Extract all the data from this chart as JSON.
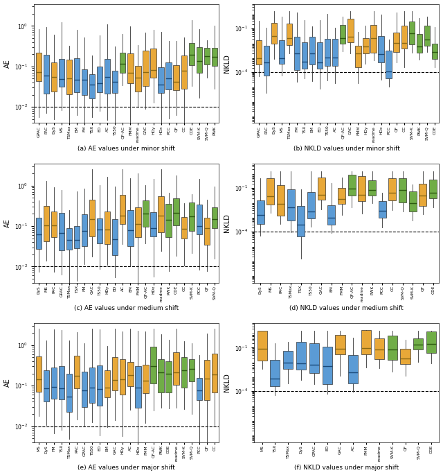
{
  "panel_configs": [
    {
      "labels": [
        "GPAC",
        "PAC",
        "DyS",
        "MS",
        "TSMax",
        "EM",
        "FM",
        "TSX",
        "ED",
        "AC",
        "TS50",
        "QF-AC",
        "FMM",
        "readme",
        "GAC",
        "HDy",
        "HDx",
        "PCC",
        "QF",
        "CC",
        "CDE",
        "SVM-K",
        "SVM-Q",
        "PWK"
      ],
      "colors": [
        "O",
        "B",
        "O",
        "B",
        "O",
        "B",
        "B",
        "B",
        "B",
        "B",
        "B",
        "G",
        "O",
        "O",
        "O",
        "O",
        "B",
        "B",
        "O",
        "O",
        "G",
        "G",
        "G",
        "G"
      ],
      "shift": "minor",
      "metric": "AE",
      "title": "(a) AE values under minor shift",
      "ylabel": "AE",
      "dline": 0.01
    },
    {
      "labels": [
        "GPAC",
        "PAC",
        "DyS",
        "MS",
        "TSMax",
        "FM",
        "TSX",
        "EM",
        "ED",
        "TS50",
        "AC",
        "QF-AC",
        "GAC",
        "FMM",
        "HDy",
        "readme",
        "HDx",
        "PCC",
        "QF",
        "CC",
        "SVM-K",
        "PWK",
        "SVM-Q",
        "CDE"
      ],
      "colors": [
        "O",
        "B",
        "O",
        "B",
        "O",
        "B",
        "B",
        "B",
        "B",
        "B",
        "B",
        "G",
        "O",
        "O",
        "O",
        "O",
        "B",
        "B",
        "O",
        "O",
        "G",
        "G",
        "G",
        "G"
      ],
      "shift": "minor",
      "metric": "NKLD",
      "title": "(b) NKLD values under minor shift",
      "ylabel": "NKLD",
      "dline": 0.0001
    },
    {
      "labels": [
        "DyS",
        "MS",
        "PAC",
        "GPAC",
        "TSMax",
        "TSX",
        "FM",
        "GAC",
        "TS50",
        "HDy",
        "ED",
        "AC",
        "EM",
        "FMM",
        "QF-AC",
        "HDx",
        "readme",
        "PWK",
        "CDE",
        "CC",
        "SVM-K",
        "PCC",
        "QF",
        "SVM-Q"
      ],
      "colors": [
        "B",
        "O",
        "O",
        "B",
        "B",
        "B",
        "B",
        "O",
        "B",
        "O",
        "B",
        "O",
        "B",
        "O",
        "G",
        "B",
        "O",
        "G",
        "G",
        "O",
        "G",
        "B",
        "O",
        "G"
      ],
      "shift": "medium",
      "metric": "AE",
      "title": "(c) AE values under medium shift",
      "ylabel": "AE",
      "dline": 0.01
    },
    {
      "labels": [
        "DyS",
        "MS",
        "PAC",
        "TSMax",
        "TSX",
        "TS50",
        "GAC",
        "EM",
        "FMM",
        "QF-AC",
        "readme",
        "PWK",
        "PCC",
        "CC",
        "SVM-Q",
        "SVM-K",
        "QF",
        "CDE"
      ],
      "colors": [
        "B",
        "O",
        "O",
        "B",
        "B",
        "B",
        "O",
        "B",
        "O",
        "G",
        "O",
        "G",
        "B",
        "O",
        "G",
        "G",
        "O",
        "G"
      ],
      "shift": "medium",
      "metric": "NKLD",
      "title": "(d) NKLD values under medium shift",
      "ylabel": "NKLD",
      "dline": 0.0001
    },
    {
      "labels": [
        "MS",
        "DyS",
        "FM",
        "TSX",
        "TSMax",
        "PAC",
        "GPAC",
        "TS50",
        "ED",
        "EM",
        "GAC",
        "HDy",
        "AC",
        "HDx",
        "FMM",
        "QF-AC",
        "PWK",
        "CDE",
        "readme",
        "SVM-K",
        "SVM-Q",
        "PCC",
        "QF",
        "CC"
      ],
      "colors": [
        "O",
        "B",
        "B",
        "B",
        "B",
        "O",
        "B",
        "B",
        "B",
        "O",
        "O",
        "O",
        "O",
        "B",
        "O",
        "G",
        "G",
        "G",
        "O",
        "G",
        "G",
        "B",
        "O",
        "O"
      ],
      "shift": "major",
      "metric": "AE",
      "title": "(e) AE values under major shift",
      "ylabel": "AE",
      "dline": 0.01
    },
    {
      "labels": [
        "MS",
        "TSX",
        "TSMax",
        "DyS",
        "GPAC",
        "ED",
        "GAC",
        "AC",
        "FMM",
        "readme",
        "SVM-K",
        "QF",
        "SVM-Q",
        "CDE"
      ],
      "colors": [
        "O",
        "B",
        "B",
        "B",
        "B",
        "B",
        "O",
        "B",
        "O",
        "O",
        "G",
        "O",
        "G",
        "G"
      ],
      "shift": "major",
      "metric": "NKLD",
      "title": "(f) NKLD values under major shift",
      "ylabel": "NKLD",
      "dline": 0.0001
    }
  ],
  "colors": {
    "B": "#5B9BD5",
    "O": "#E8A838",
    "G": "#70AD47"
  },
  "box_stats": {
    "AE_minor": {
      "B": {
        "med_lo": 0.028,
        "med_hi": 0.065,
        "q1_factor_lo": 0.35,
        "q1_factor_hi": 0.65,
        "q3_factor_lo": 1.8,
        "q3_factor_hi": 3.5,
        "wlo_factor_lo": 0.05,
        "wlo_factor_hi": 0.4,
        "whi_factor_lo": 2.0,
        "whi_factor_hi": 8.0
      },
      "O": {
        "med_lo": 0.04,
        "med_hi": 0.09,
        "q1_factor_lo": 0.35,
        "q1_factor_hi": 0.65,
        "q3_factor_lo": 1.8,
        "q3_factor_hi": 3.5,
        "wlo_factor_lo": 0.05,
        "wlo_factor_hi": 0.4,
        "whi_factor_lo": 2.0,
        "whi_factor_hi": 8.0
      },
      "G": {
        "med_lo": 0.1,
        "med_hi": 0.2,
        "q1_factor_lo": 0.35,
        "q1_factor_hi": 0.65,
        "q3_factor_lo": 1.5,
        "q3_factor_hi": 2.5,
        "wlo_factor_lo": 0.1,
        "wlo_factor_hi": 0.5,
        "whi_factor_lo": 1.5,
        "whi_factor_hi": 4.0
      }
    },
    "AE_medium": {
      "B": {
        "med_lo": 0.04,
        "med_hi": 0.1,
        "q1_factor_lo": 0.35,
        "q1_factor_hi": 0.65,
        "q3_factor_lo": 1.8,
        "q3_factor_hi": 3.5,
        "wlo_factor_lo": 0.05,
        "wlo_factor_hi": 0.4,
        "whi_factor_lo": 2.0,
        "whi_factor_hi": 8.0
      },
      "O": {
        "med_lo": 0.06,
        "med_hi": 0.18,
        "q1_factor_lo": 0.35,
        "q1_factor_hi": 0.65,
        "q3_factor_lo": 1.8,
        "q3_factor_hi": 3.5,
        "wlo_factor_lo": 0.05,
        "wlo_factor_hi": 0.4,
        "whi_factor_lo": 2.0,
        "whi_factor_hi": 8.0
      },
      "G": {
        "med_lo": 0.12,
        "med_hi": 0.28,
        "q1_factor_lo": 0.35,
        "q1_factor_hi": 0.65,
        "q3_factor_lo": 1.5,
        "q3_factor_hi": 2.5,
        "wlo_factor_lo": 0.1,
        "wlo_factor_hi": 0.5,
        "whi_factor_lo": 1.5,
        "whi_factor_hi": 4.0
      }
    },
    "AE_major": {
      "B": {
        "med_lo": 0.05,
        "med_hi": 0.14,
        "q1_factor_lo": 0.3,
        "q1_factor_hi": 0.6,
        "q3_factor_lo": 2.0,
        "q3_factor_hi": 4.0,
        "wlo_factor_lo": 0.03,
        "wlo_factor_hi": 0.35,
        "whi_factor_lo": 2.5,
        "whi_factor_hi": 10.0
      },
      "O": {
        "med_lo": 0.08,
        "med_hi": 0.22,
        "q1_factor_lo": 0.3,
        "q1_factor_hi": 0.6,
        "q3_factor_lo": 2.0,
        "q3_factor_hi": 4.0,
        "wlo_factor_lo": 0.03,
        "wlo_factor_hi": 0.35,
        "whi_factor_lo": 2.5,
        "whi_factor_hi": 10.0
      },
      "G": {
        "med_lo": 0.15,
        "med_hi": 0.4,
        "q1_factor_lo": 0.3,
        "q1_factor_hi": 0.6,
        "q3_factor_lo": 1.5,
        "q3_factor_hi": 3.0,
        "wlo_factor_lo": 0.1,
        "wlo_factor_hi": 0.5,
        "whi_factor_lo": 2.0,
        "whi_factor_hi": 5.0
      }
    },
    "NKLD_minor": {
      "B": {
        "med_lo": 3e-05,
        "med_hi": 0.002,
        "q1_factor_lo": 0.05,
        "q1_factor_hi": 0.4,
        "q3_factor_lo": 3.0,
        "q3_factor_hi": 30.0,
        "wlo_factor_lo": 0.01,
        "wlo_factor_hi": 0.3,
        "whi_factor_lo": 3.0,
        "whi_factor_hi": 50.0
      },
      "O": {
        "med_lo": 0.0005,
        "med_hi": 0.03,
        "q1_factor_lo": 0.1,
        "q1_factor_hi": 0.5,
        "q3_factor_lo": 3.0,
        "q3_factor_hi": 20.0,
        "wlo_factor_lo": 0.01,
        "wlo_factor_hi": 0.3,
        "whi_factor_lo": 3.0,
        "whi_factor_hi": 30.0
      },
      "G": {
        "med_lo": 0.001,
        "med_hi": 0.05,
        "q1_factor_lo": 0.1,
        "q1_factor_hi": 0.5,
        "q3_factor_lo": 2.0,
        "q3_factor_hi": 10.0,
        "wlo_factor_lo": 0.05,
        "wlo_factor_hi": 0.4,
        "whi_factor_lo": 2.0,
        "whi_factor_hi": 15.0
      }
    },
    "NKLD_medium": {
      "B": {
        "med_lo": 0.0001,
        "med_hi": 0.005,
        "q1_factor_lo": 0.05,
        "q1_factor_hi": 0.4,
        "q3_factor_lo": 3.0,
        "q3_factor_hi": 30.0,
        "wlo_factor_lo": 0.01,
        "wlo_factor_hi": 0.3,
        "whi_factor_lo": 3.0,
        "whi_factor_hi": 50.0
      },
      "O": {
        "med_lo": 0.002,
        "med_hi": 0.05,
        "q1_factor_lo": 0.1,
        "q1_factor_hi": 0.5,
        "q3_factor_lo": 3.0,
        "q3_factor_hi": 20.0,
        "wlo_factor_lo": 0.01,
        "wlo_factor_hi": 0.3,
        "whi_factor_lo": 3.0,
        "whi_factor_hi": 30.0
      },
      "G": {
        "med_lo": 0.005,
        "med_hi": 0.1,
        "q1_factor_lo": 0.1,
        "q1_factor_hi": 0.5,
        "q3_factor_lo": 2.0,
        "q3_factor_hi": 10.0,
        "wlo_factor_lo": 0.05,
        "wlo_factor_hi": 0.4,
        "whi_factor_lo": 2.0,
        "whi_factor_hi": 15.0
      }
    },
    "NKLD_major": {
      "B": {
        "med_lo": 0.0003,
        "med_hi": 0.01,
        "q1_factor_lo": 0.05,
        "q1_factor_hi": 0.4,
        "q3_factor_lo": 3.0,
        "q3_factor_hi": 30.0,
        "wlo_factor_lo": 0.01,
        "wlo_factor_hi": 0.3,
        "whi_factor_lo": 3.0,
        "whi_factor_hi": 50.0
      },
      "O": {
        "med_lo": 0.005,
        "med_hi": 0.1,
        "q1_factor_lo": 0.1,
        "q1_factor_hi": 0.5,
        "q3_factor_lo": 3.0,
        "q3_factor_hi": 20.0,
        "wlo_factor_lo": 0.01,
        "wlo_factor_hi": 0.3,
        "whi_factor_lo": 3.0,
        "whi_factor_hi": 30.0
      },
      "G": {
        "med_lo": 0.01,
        "med_hi": 0.3,
        "q1_factor_lo": 0.1,
        "q1_factor_hi": 0.5,
        "q3_factor_lo": 2.0,
        "q3_factor_hi": 10.0,
        "wlo_factor_lo": 0.05,
        "wlo_factor_hi": 0.4,
        "whi_factor_lo": 2.0,
        "whi_factor_hi": 15.0
      }
    }
  }
}
